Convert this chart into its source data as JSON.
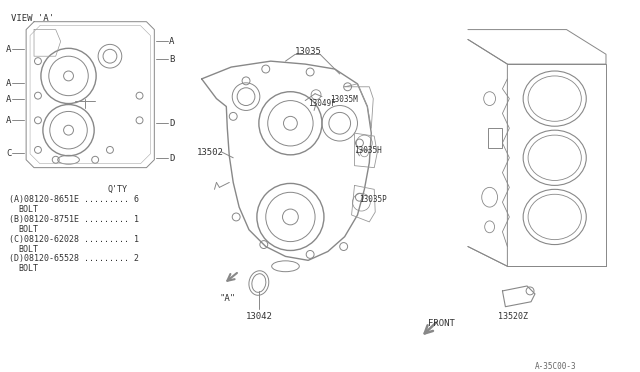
{
  "bg_color": "#ffffff",
  "line_color": "#888888",
  "text_color": "#333333",
  "view_a_label": "VIEW 'A'",
  "qty_header": "Q'TY",
  "bom_items": [
    {
      "key": "A",
      "part": "08120-8651E",
      "desc": "BOLT",
      "qty": "6"
    },
    {
      "key": "B",
      "part": "08120-8751E",
      "desc": "BOLT",
      "qty": "1"
    },
    {
      "key": "C",
      "part": "08120-62028",
      "desc": "BOLT",
      "qty": "1"
    },
    {
      "key": "D",
      "part": "08120-65528",
      "desc": "BOLT",
      "qty": "2"
    }
  ],
  "footer": "A-35C00-3",
  "lw": 0.7,
  "fs": 6.0
}
